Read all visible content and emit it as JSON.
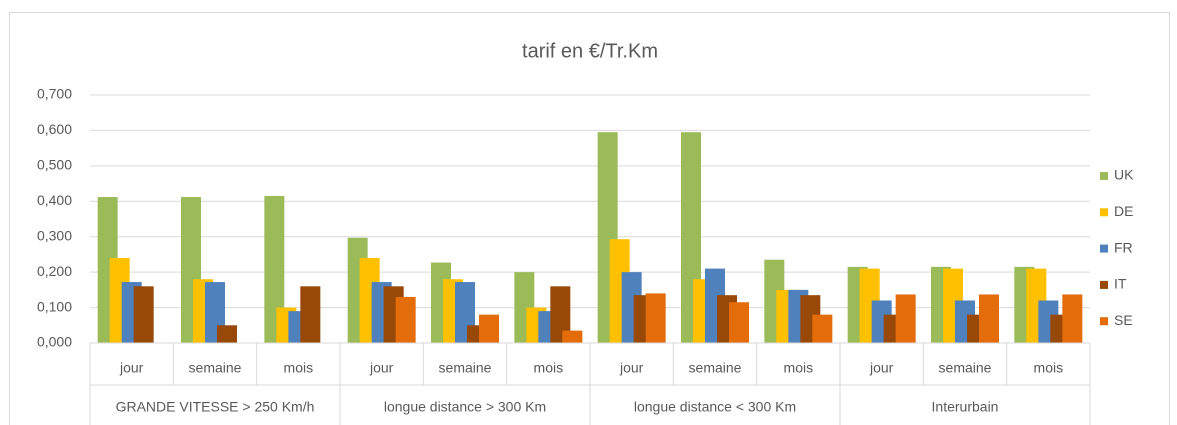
{
  "chart_data": {
    "type": "bar",
    "title": "tarif en €/Tr.Km",
    "categories": [
      "jour",
      "semaine",
      "mois",
      "jour",
      "semaine",
      "mois",
      "jour",
      "semaine",
      "mois",
      "jour",
      "semaine",
      "mois"
    ],
    "groups": [
      "GRANDE VITESSE  > 250 Km/h",
      "longue distance > 300 Km",
      "longue distance < 300 Km",
      "Interurbain"
    ],
    "series": [
      {
        "name": "UK",
        "color": "#9bbb59",
        "values": [
          0.412,
          0.412,
          0.415,
          0.297,
          0.227,
          0.2,
          0.595,
          0.595,
          0.235,
          0.215,
          0.215,
          0.215
        ]
      },
      {
        "name": "DE",
        "color": "#ffc000",
        "values": [
          0.24,
          0.18,
          0.1,
          0.24,
          0.18,
          0.1,
          0.293,
          0.18,
          0.15,
          0.21,
          0.21,
          0.21
        ]
      },
      {
        "name": "FR",
        "color": "#4f81bd",
        "values": [
          0.172,
          0.172,
          0.09,
          0.172,
          0.172,
          0.09,
          0.2,
          0.21,
          0.15,
          0.12,
          0.12,
          0.12
        ]
      },
      {
        "name": "IT",
        "color": "#984807",
        "values": [
          0.16,
          0.05,
          0.16,
          0.16,
          0.05,
          0.16,
          0.135,
          0.135,
          0.135,
          0.08,
          0.08,
          0.08
        ]
      },
      {
        "name": "SE",
        "color": "#e46c0a",
        "values": [
          null,
          null,
          null,
          0.13,
          0.08,
          0.035,
          0.14,
          0.115,
          0.08,
          0.137,
          0.137,
          0.137
        ]
      }
    ],
    "ylim": [
      0,
      0.7
    ],
    "yticks": [
      {
        "value": 0,
        "label": "0,000"
      },
      {
        "value": 0.1,
        "label": "0,100"
      },
      {
        "value": 0.2,
        "label": "0,200"
      },
      {
        "value": 0.3,
        "label": "0,300"
      },
      {
        "value": 0.4,
        "label": "0,400"
      },
      {
        "value": 0.5,
        "label": "0,500"
      },
      {
        "value": 0.6,
        "label": "0,600"
      },
      {
        "value": 0.7,
        "label": "0,700"
      }
    ],
    "grid": true,
    "legend": "right"
  }
}
